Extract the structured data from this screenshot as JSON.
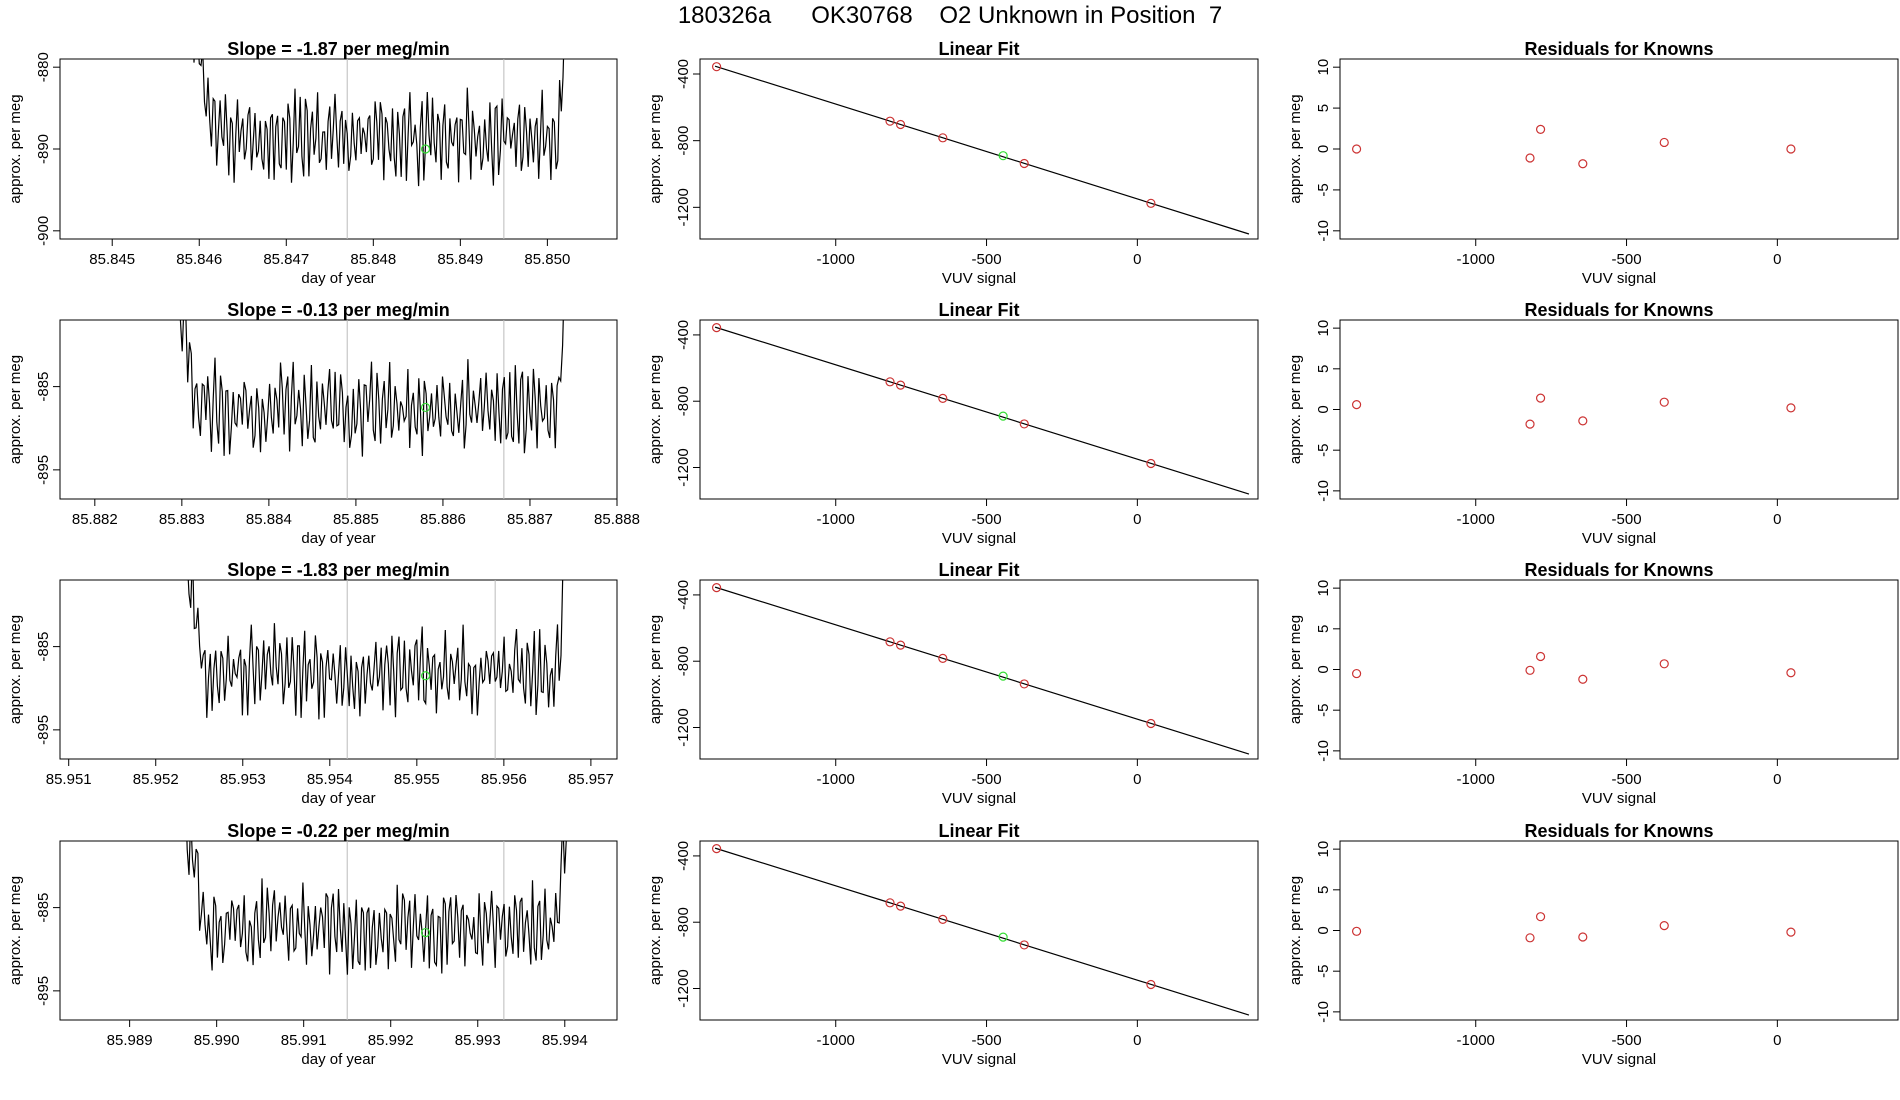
{
  "page_title": "180326a      OK30768    O2 Unknown in Position  7",
  "colors": {
    "line": "#000000",
    "known_points": "#cc3333",
    "unknown_point": "#33dd33",
    "window_lines": "#bbbbbb"
  },
  "chart_data": [
    {
      "type": "line",
      "panel": "time-series",
      "row": 1,
      "title": "Slope =  -1.87  per meg/min",
      "xlabel": "day of year",
      "ylabel": "approx. per meg",
      "xlim": [
        85.8444,
        85.8508
      ],
      "ylim": [
        -901,
        -879
      ],
      "xticks": [
        85.845,
        85.846,
        85.847,
        85.848,
        85.849,
        85.85
      ],
      "xtick_labels": [
        "85.845",
        "85.846",
        "85.847",
        "85.848",
        "85.849",
        "85.850"
      ],
      "yticks": [
        -900,
        -890,
        -880
      ],
      "ytick_labels": [
        "-900",
        "-890",
        "-880"
      ],
      "data_start": 85.8459,
      "data_end": 85.8503,
      "mean_level": -888.5,
      "window_lines": [
        85.8477,
        85.8495
      ],
      "marker": {
        "x": 85.8486,
        "y": -890
      }
    },
    {
      "type": "scatter",
      "panel": "linear-fit",
      "row": 1,
      "title": "Linear Fit",
      "xlabel": "VUV signal",
      "ylabel": "approx. per meg",
      "xlim": [
        -1450,
        400
      ],
      "ylim": [
        -1390,
        -310
      ],
      "xticks": [
        -1000,
        -500,
        0
      ],
      "xtick_labels": [
        "-1000",
        "-500",
        "0"
      ],
      "yticks": [
        -1200,
        -800,
        -400
      ],
      "ytick_labels": [
        "-1200",
        "-800",
        "-400"
      ],
      "fit_line": {
        "x": [
          -1400,
          370
        ],
        "y": [
          -353,
          -1360
        ]
      },
      "knowns": [
        {
          "x": -1395,
          "y": -356
        },
        {
          "x": -820,
          "y": -683
        },
        {
          "x": -785,
          "y": -703
        },
        {
          "x": -645,
          "y": -783
        },
        {
          "x": -375,
          "y": -937
        },
        {
          "x": 45,
          "y": -1176
        }
      ],
      "unknown": {
        "x": -445,
        "y": -890
      }
    },
    {
      "type": "scatter",
      "panel": "residuals",
      "row": 1,
      "title": "Residuals for Knowns",
      "xlabel": "VUV signal",
      "ylabel": "approx. per meg",
      "xlim": [
        -1450,
        400
      ],
      "ylim": [
        -11,
        11
      ],
      "xticks": [
        -1000,
        -500,
        0
      ],
      "xtick_labels": [
        "-1000",
        "-500",
        "0"
      ],
      "yticks": [
        -10,
        -5,
        0,
        5,
        10
      ],
      "ytick_labels": [
        "-10",
        "-5",
        "0",
        "5",
        "10"
      ],
      "points": [
        {
          "x": -1395,
          "y": 0
        },
        {
          "x": -820,
          "y": -1.1
        },
        {
          "x": -785,
          "y": 2.4
        },
        {
          "x": -645,
          "y": -1.8
        },
        {
          "x": -375,
          "y": 0.8
        },
        {
          "x": 45,
          "y": 0
        }
      ]
    },
    {
      "type": "line",
      "panel": "time-series",
      "row": 2,
      "title": "Slope =  -0.13  per meg/min",
      "xlabel": "day of year",
      "ylabel": "approx. per meg",
      "xlim": [
        85.8816,
        85.888
      ],
      "ylim": [
        -898.5,
        -877
      ],
      "xticks": [
        85.882,
        85.883,
        85.884,
        85.885,
        85.886,
        85.887,
        85.888
      ],
      "xtick_labels": [
        "85.882",
        "85.883",
        "85.884",
        "85.885",
        "85.886",
        "85.887",
        "85.888"
      ],
      "yticks": [
        -895,
        -885
      ],
      "ytick_labels": [
        "-895",
        "-885"
      ],
      "data_start": 85.8829,
      "data_end": 85.8875,
      "mean_level": -887.5,
      "window_lines": [
        85.8849,
        85.8867
      ],
      "marker": {
        "x": 85.8858,
        "y": -887.5
      }
    },
    {
      "type": "scatter",
      "panel": "linear-fit",
      "row": 2,
      "title": "Linear Fit",
      "xlabel": "VUV signal",
      "ylabel": "approx. per meg",
      "xlim": [
        -1450,
        400
      ],
      "ylim": [
        -1390,
        -310
      ],
      "xticks": [
        -1000,
        -500,
        0
      ],
      "xtick_labels": [
        "-1000",
        "-500",
        "0"
      ],
      "yticks": [
        -1200,
        -800,
        -400
      ],
      "ytick_labels": [
        "-1200",
        "-800",
        "-400"
      ],
      "fit_line": {
        "x": [
          -1400,
          370
        ],
        "y": [
          -353,
          -1360
        ]
      },
      "knowns": [
        {
          "x": -1395,
          "y": -356
        },
        {
          "x": -820,
          "y": -683
        },
        {
          "x": -785,
          "y": -703
        },
        {
          "x": -645,
          "y": -783
        },
        {
          "x": -375,
          "y": -937
        },
        {
          "x": 45,
          "y": -1176
        }
      ],
      "unknown": {
        "x": -445,
        "y": -890
      }
    },
    {
      "type": "scatter",
      "panel": "residuals",
      "row": 2,
      "title": "Residuals for Knowns",
      "xlabel": "VUV signal",
      "ylabel": "approx. per meg",
      "xlim": [
        -1450,
        400
      ],
      "ylim": [
        -11,
        11
      ],
      "xticks": [
        -1000,
        -500,
        0
      ],
      "xtick_labels": [
        "-1000",
        "-500",
        "0"
      ],
      "yticks": [
        -10,
        -5,
        0,
        5,
        10
      ],
      "ytick_labels": [
        "-10",
        "-5",
        "0",
        "5",
        "10"
      ],
      "points": [
        {
          "x": -1395,
          "y": 0.6
        },
        {
          "x": -820,
          "y": -1.8
        },
        {
          "x": -785,
          "y": 1.4
        },
        {
          "x": -645,
          "y": -1.4
        },
        {
          "x": -375,
          "y": 0.9
        },
        {
          "x": 45,
          "y": 0.2
        }
      ]
    },
    {
      "type": "line",
      "panel": "time-series",
      "row": 3,
      "title": "Slope =  -1.83  per meg/min",
      "xlabel": "day of year",
      "ylabel": "approx. per meg",
      "xlim": [
        85.9509,
        85.9573
      ],
      "ylim": [
        -898.5,
        -877
      ],
      "xticks": [
        85.951,
        85.952,
        85.953,
        85.954,
        85.955,
        85.956,
        85.957
      ],
      "xtick_labels": [
        "85.951",
        "85.952",
        "85.953",
        "85.954",
        "85.955",
        "85.956",
        "85.957"
      ],
      "yticks": [
        -895,
        -885
      ],
      "ytick_labels": [
        "-895",
        "-885"
      ],
      "data_start": 85.9523,
      "data_end": 85.9568,
      "mean_level": -888,
      "window_lines": [
        85.9542,
        85.9559
      ],
      "marker": {
        "x": 85.9551,
        "y": -888.5
      }
    },
    {
      "type": "scatter",
      "panel": "linear-fit",
      "row": 3,
      "title": "Linear Fit",
      "xlabel": "VUV signal",
      "ylabel": "approx. per meg",
      "xlim": [
        -1450,
        400
      ],
      "ylim": [
        -1390,
        -310
      ],
      "xticks": [
        -1000,
        -500,
        0
      ],
      "xtick_labels": [
        "-1000",
        "-500",
        "0"
      ],
      "yticks": [
        -1200,
        -800,
        -400
      ],
      "ytick_labels": [
        "-1200",
        "-800",
        "-400"
      ],
      "fit_line": {
        "x": [
          -1400,
          370
        ],
        "y": [
          -353,
          -1360
        ]
      },
      "knowns": [
        {
          "x": -1395,
          "y": -356
        },
        {
          "x": -820,
          "y": -683
        },
        {
          "x": -785,
          "y": -703
        },
        {
          "x": -645,
          "y": -783
        },
        {
          "x": -375,
          "y": -937
        },
        {
          "x": 45,
          "y": -1176
        }
      ],
      "unknown": {
        "x": -445,
        "y": -890
      }
    },
    {
      "type": "scatter",
      "panel": "residuals",
      "row": 3,
      "title": "Residuals for Knowns",
      "xlabel": "VUV signal",
      "ylabel": "approx. per meg",
      "xlim": [
        -1450,
        400
      ],
      "ylim": [
        -11,
        11
      ],
      "xticks": [
        -1000,
        -500,
        0
      ],
      "xtick_labels": [
        "-1000",
        "-500",
        "0"
      ],
      "yticks": [
        -10,
        -5,
        0,
        5,
        10
      ],
      "ytick_labels": [
        "-10",
        "-5",
        "0",
        "5",
        "10"
      ],
      "points": [
        {
          "x": -1395,
          "y": -0.5
        },
        {
          "x": -820,
          "y": -0.1
        },
        {
          "x": -785,
          "y": 1.6
        },
        {
          "x": -645,
          "y": -1.2
        },
        {
          "x": -375,
          "y": 0.7
        },
        {
          "x": 45,
          "y": -0.4
        }
      ]
    },
    {
      "type": "line",
      "panel": "time-series",
      "row": 4,
      "title": "Slope =  -0.22  per meg/min",
      "xlabel": "day of year",
      "ylabel": "approx. per meg",
      "xlim": [
        85.9882,
        85.9946
      ],
      "ylim": [
        -898.5,
        -877
      ],
      "xticks": [
        85.989,
        85.99,
        85.991,
        85.992,
        85.993,
        85.994
      ],
      "xtick_labels": [
        "85.989",
        "85.990",
        "85.991",
        "85.992",
        "85.993",
        "85.994"
      ],
      "yticks": [
        -895,
        -885
      ],
      "ytick_labels": [
        "-895",
        "-885"
      ],
      "data_start": 85.9896,
      "data_end": 85.9941,
      "mean_level": -887.5,
      "window_lines": [
        85.9915,
        85.9933
      ],
      "marker": {
        "x": 85.9924,
        "y": -888
      }
    },
    {
      "type": "scatter",
      "panel": "linear-fit",
      "row": 4,
      "title": "Linear Fit",
      "xlabel": "VUV signal",
      "ylabel": "approx. per meg",
      "xlim": [
        -1450,
        400
      ],
      "ylim": [
        -1390,
        -310
      ],
      "xticks": [
        -1000,
        -500,
        0
      ],
      "xtick_labels": [
        "-1000",
        "-500",
        "0"
      ],
      "yticks": [
        -1200,
        -800,
        -400
      ],
      "ytick_labels": [
        "-1200",
        "-800",
        "-400"
      ],
      "fit_line": {
        "x": [
          -1400,
          370
        ],
        "y": [
          -353,
          -1360
        ]
      },
      "knowns": [
        {
          "x": -1395,
          "y": -356
        },
        {
          "x": -820,
          "y": -683
        },
        {
          "x": -785,
          "y": -703
        },
        {
          "x": -645,
          "y": -783
        },
        {
          "x": -375,
          "y": -937
        },
        {
          "x": 45,
          "y": -1176
        }
      ],
      "unknown": {
        "x": -445,
        "y": -890
      }
    },
    {
      "type": "scatter",
      "panel": "residuals",
      "row": 4,
      "title": "Residuals for Knowns",
      "xlabel": "VUV signal",
      "ylabel": "approx. per meg",
      "xlim": [
        -1450,
        400
      ],
      "ylim": [
        -11,
        11
      ],
      "xticks": [
        -1000,
        -500,
        0
      ],
      "xtick_labels": [
        "-1000",
        "-500",
        "0"
      ],
      "yticks": [
        -10,
        -5,
        0,
        5,
        10
      ],
      "ytick_labels": [
        "-10",
        "-5",
        "0",
        "5",
        "10"
      ],
      "points": [
        {
          "x": -1395,
          "y": -0.1
        },
        {
          "x": -820,
          "y": -0.9
        },
        {
          "x": -785,
          "y": 1.7
        },
        {
          "x": -645,
          "y": -0.8
        },
        {
          "x": -375,
          "y": 0.6
        },
        {
          "x": 45,
          "y": -0.2
        }
      ]
    }
  ]
}
